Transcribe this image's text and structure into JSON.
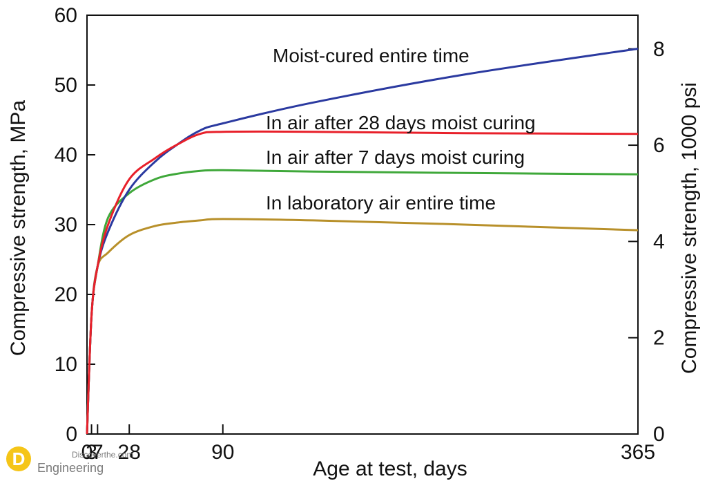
{
  "chart_data": {
    "type": "line",
    "xlabel": "Age at test, days",
    "ylabel": "Compressive strength, MPa",
    "y2label": "Compressive strength, 1000 psi",
    "xlim": [
      0,
      365
    ],
    "ylim": [
      0,
      60
    ],
    "y2lim": [
      0,
      8.7
    ],
    "x_ticks": [
      {
        "value": 0,
        "label": "0"
      },
      {
        "value": 3,
        "label": "3"
      },
      {
        "value": 7,
        "label": "7"
      },
      {
        "value": 28,
        "label": "28"
      },
      {
        "value": 90,
        "label": "90"
      },
      {
        "value": 365,
        "label": "365"
      }
    ],
    "y_ticks": [
      0,
      10,
      20,
      30,
      40,
      50,
      60
    ],
    "y2_ticks": [
      0,
      2,
      4,
      6,
      8
    ],
    "grid": false,
    "legend": "inline labels",
    "series": [
      {
        "name": "Moist-cured entire time",
        "color": "#2b3aa0",
        "x": [
          0,
          3,
          7,
          14,
          28,
          45,
          60,
          75,
          90,
          150,
          250,
          365
        ],
        "y": [
          0,
          17,
          24,
          29,
          35,
          39,
          41.5,
          43.5,
          44.5,
          47.5,
          51.5,
          55.2
        ]
      },
      {
        "name": "In air after 28 days moist curing",
        "color": "#e8202a",
        "x": [
          0,
          3,
          7,
          14,
          28,
          45,
          60,
          75,
          90,
          150,
          250,
          365
        ],
        "y": [
          0,
          17,
          24,
          30,
          36.5,
          39.5,
          41.5,
          43,
          43.3,
          43.3,
          43.1,
          43
        ]
      },
      {
        "name": "In air after 7 days moist curing",
        "color": "#3fa83a",
        "x": [
          0,
          3,
          7,
          14,
          28,
          45,
          60,
          75,
          90,
          150,
          250,
          365
        ],
        "y": [
          0,
          17,
          24,
          31,
          34.5,
          36.5,
          37.3,
          37.7,
          37.8,
          37.6,
          37.4,
          37.2
        ]
      },
      {
        "name": "In laboratory air entire time",
        "color": "#b8902a",
        "x": [
          0,
          3,
          7,
          14,
          28,
          45,
          60,
          75,
          90,
          150,
          250,
          365
        ],
        "y": [
          0,
          17,
          24,
          26,
          28.5,
          29.8,
          30.3,
          30.6,
          30.8,
          30.6,
          30,
          29.2
        ]
      }
    ]
  },
  "watermark": {
    "logo_letter": "D",
    "line1": "Discoverthe.com",
    "line2": "Engineering"
  }
}
